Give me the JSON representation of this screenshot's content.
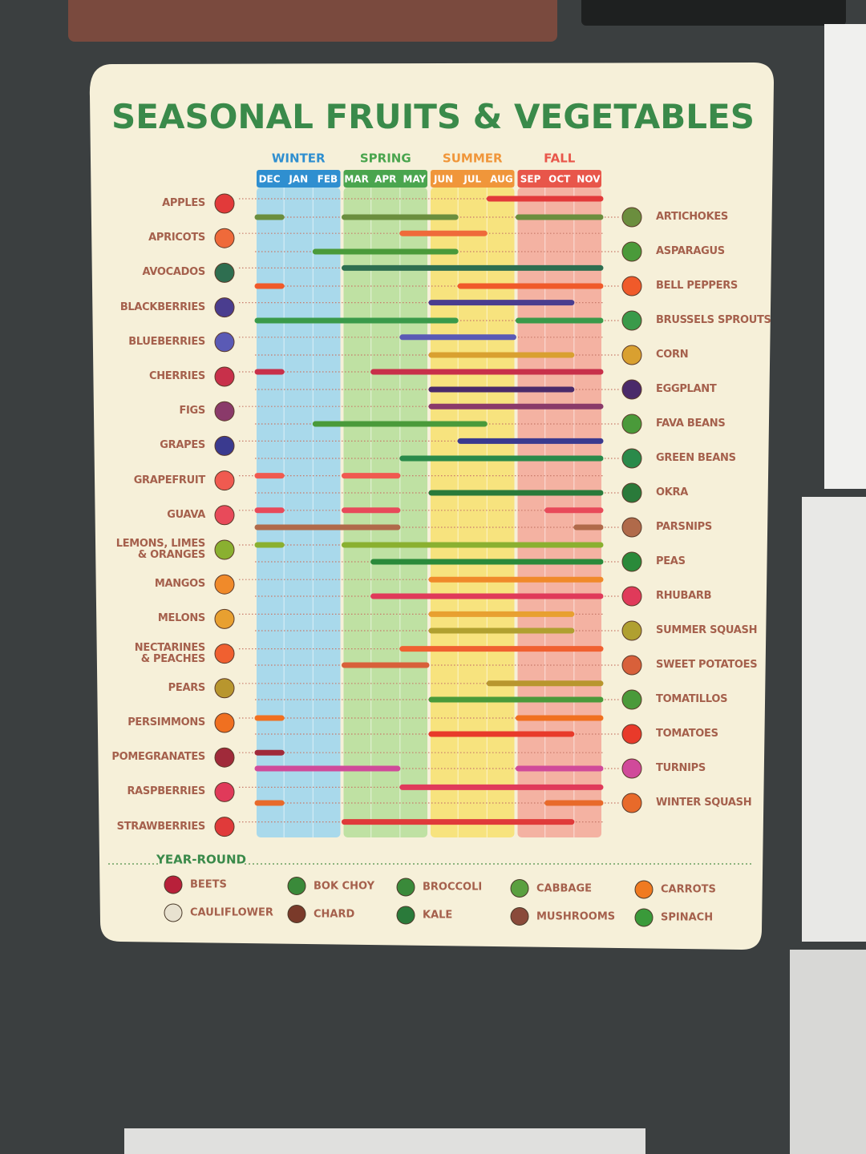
{
  "chart_data": {
    "type": "gantt",
    "title": "SEASONAL FRUITS & VEGETABLES",
    "xlim": [
      0,
      12
    ],
    "months": [
      "DEC",
      "JAN",
      "FEB",
      "MAR",
      "APR",
      "MAY",
      "JUN",
      "JUL",
      "AUG",
      "SEP",
      "OCT",
      "NOV"
    ],
    "seasons": [
      {
        "name": "WINTER",
        "color": "#2f8fd0",
        "bg": "#a9d9eb"
      },
      {
        "name": "SPRING",
        "color": "#4aa54e",
        "bg": "#bfe1a3"
      },
      {
        "name": "SUMMER",
        "color": "#f0963a",
        "bg": "#f7e37e"
      },
      {
        "name": "FALL",
        "color": "#e8564a",
        "bg": "#f4b2a2"
      }
    ],
    "fruits": [
      {
        "name": "APPLES",
        "color": "#e23a3a",
        "ranges": [
          [
            8,
            12
          ]
        ]
      },
      {
        "name": "APRICOTS",
        "color": "#ef6a3a",
        "ranges": [
          [
            5,
            8
          ]
        ]
      },
      {
        "name": "AVOCADOS",
        "color": "#2e6e50",
        "ranges": [
          [
            3,
            12
          ]
        ]
      },
      {
        "name": "BLACKBERRIES",
        "color": "#4a3d8f",
        "ranges": [
          [
            6,
            11
          ]
        ]
      },
      {
        "name": "BLUEBERRIES",
        "color": "#5a5ab5",
        "ranges": [
          [
            5,
            9
          ]
        ]
      },
      {
        "name": "CHERRIES",
        "color": "#c8304a",
        "ranges": [
          [
            0,
            1
          ],
          [
            4,
            12
          ]
        ]
      },
      {
        "name": "FIGS",
        "color": "#8a3a6a",
        "ranges": [
          [
            6,
            12
          ]
        ]
      },
      {
        "name": "GRAPES",
        "color": "#3a3a8f",
        "ranges": [
          [
            7,
            12
          ]
        ]
      },
      {
        "name": "GRAPEFRUIT",
        "color": "#f05a50",
        "ranges": [
          [
            0,
            1
          ],
          [
            3,
            5
          ]
        ]
      },
      {
        "name": "GUAVA",
        "color": "#e84a5a",
        "ranges": [
          [
            0,
            1
          ],
          [
            3,
            5
          ],
          [
            10,
            12
          ]
        ]
      },
      {
        "name": "LEMONS, LIMES\n& ORANGES",
        "color": "#8ab030",
        "ranges": [
          [
            0,
            1
          ],
          [
            3,
            12
          ]
        ]
      },
      {
        "name": "MANGOS",
        "color": "#f08a2a",
        "ranges": [
          [
            6,
            12
          ]
        ]
      },
      {
        "name": "MELONS",
        "color": "#e8a030",
        "ranges": [
          [
            6,
            11
          ]
        ]
      },
      {
        "name": "NECTARINES\n& PEACHES",
        "color": "#f06030",
        "ranges": [
          [
            5,
            12
          ]
        ]
      },
      {
        "name": "PEARS",
        "color": "#b8962e",
        "ranges": [
          [
            8,
            12
          ]
        ]
      },
      {
        "name": "PERSIMMONS",
        "color": "#f07020",
        "ranges": [
          [
            0,
            1
          ],
          [
            9,
            12
          ]
        ]
      },
      {
        "name": "POMEGRANATES",
        "color": "#a02a3a",
        "ranges": [
          [
            0,
            1
          ]
        ]
      },
      {
        "name": "RASPBERRIES",
        "color": "#e03a5a",
        "ranges": [
          [
            5,
            12
          ]
        ]
      },
      {
        "name": "STRAWBERRIES",
        "color": "#e03a3a",
        "ranges": [
          [
            3,
            11
          ]
        ]
      }
    ],
    "vegetables": [
      {
        "name": "ARTICHOKES",
        "color": "#6b8e3e",
        "ranges": [
          [
            0,
            1
          ],
          [
            3,
            7
          ],
          [
            9,
            12
          ]
        ]
      },
      {
        "name": "ASPARAGUS",
        "color": "#4a9a3a",
        "ranges": [
          [
            2,
            7
          ]
        ]
      },
      {
        "name": "BELL PEPPERS",
        "color": "#f05a2a",
        "ranges": [
          [
            0,
            1
          ],
          [
            7,
            12
          ]
        ]
      },
      {
        "name": "BRUSSELS SPROUTS",
        "color": "#3a9a4a",
        "ranges": [
          [
            0,
            7
          ],
          [
            9,
            12
          ]
        ]
      },
      {
        "name": "CORN",
        "color": "#d9a030",
        "ranges": [
          [
            6,
            11
          ]
        ]
      },
      {
        "name": "EGGPLANT",
        "color": "#4a2a6a",
        "ranges": [
          [
            6,
            11
          ]
        ]
      },
      {
        "name": "FAVA BEANS",
        "color": "#4a9a3a",
        "ranges": [
          [
            2,
            8
          ]
        ]
      },
      {
        "name": "GREEN BEANS",
        "color": "#2a8a4a",
        "ranges": [
          [
            5,
            12
          ]
        ]
      },
      {
        "name": "OKRA",
        "color": "#2a7a3a",
        "ranges": [
          [
            6,
            12
          ]
        ]
      },
      {
        "name": "PARSNIPS",
        "color": "#b06a4a",
        "ranges": [
          [
            0,
            5
          ],
          [
            11,
            12
          ]
        ]
      },
      {
        "name": "PEAS",
        "color": "#2a8a3a",
        "ranges": [
          [
            4,
            12
          ]
        ]
      },
      {
        "name": "RHUBARB",
        "color": "#e03a5a",
        "ranges": [
          [
            4,
            12
          ]
        ]
      },
      {
        "name": "SUMMER SQUASH",
        "color": "#b0a030",
        "ranges": [
          [
            6,
            11
          ]
        ]
      },
      {
        "name": "SWEET POTATOES",
        "color": "#d8603a",
        "ranges": [
          [
            3,
            6
          ]
        ]
      },
      {
        "name": "TOMATILLOS",
        "color": "#4a9a3a",
        "ranges": [
          [
            6,
            12
          ]
        ]
      },
      {
        "name": "TOMATOES",
        "color": "#e83a2a",
        "ranges": [
          [
            6,
            11
          ]
        ]
      },
      {
        "name": "TURNIPS",
        "color": "#d04a9a",
        "ranges": [
          [
            0,
            5
          ],
          [
            9,
            12
          ]
        ]
      },
      {
        "name": "WINTER SQUASH",
        "color": "#e86a2a",
        "ranges": [
          [
            0,
            1
          ],
          [
            10,
            12
          ]
        ]
      }
    ],
    "year_round": {
      "title": "YEAR-ROUND",
      "items": [
        {
          "name": "BEETS",
          "color": "#b8203a"
        },
        {
          "name": "CAULIFLOWER",
          "color": "#e8e2d0"
        },
        {
          "name": "BOK CHOY",
          "color": "#3a8a3a"
        },
        {
          "name": "CHARD",
          "color": "#7a3a2a"
        },
        {
          "name": "BROCCOLI",
          "color": "#3a8a3a"
        },
        {
          "name": "KALE",
          "color": "#2a7a3a"
        },
        {
          "name": "CABBAGE",
          "color": "#5aa040"
        },
        {
          "name": "MUSHROOMS",
          "color": "#8a4a3a"
        },
        {
          "name": "CARROTS",
          "color": "#f07a20"
        },
        {
          "name": "SPINACH",
          "color": "#3a9a3a"
        }
      ]
    }
  }
}
